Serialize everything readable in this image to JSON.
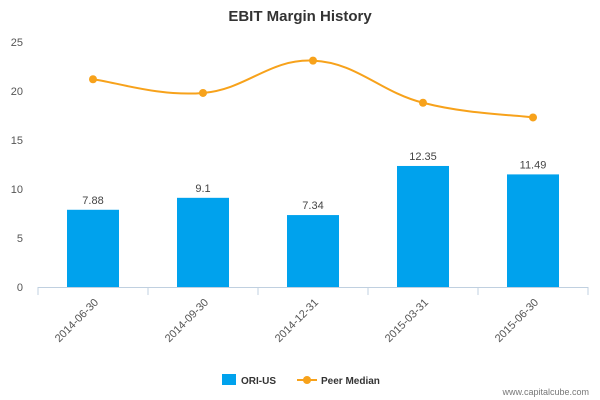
{
  "chart_data": {
    "type": "bar",
    "title": "EBIT Margin History",
    "xlabel": "",
    "ylabel": "",
    "categories": [
      "2014-06-30",
      "2014-09-30",
      "2014-12-31",
      "2015-03-31",
      "2015-06-30"
    ],
    "ylim": [
      0,
      25
    ],
    "yticks": [
      0,
      5,
      10,
      15,
      20,
      25
    ],
    "grid": false,
    "legend_position": "bottom-center",
    "series": [
      {
        "name": "ORI-US",
        "kind": "bar",
        "color": "#00A2ED",
        "values": [
          7.88,
          9.1,
          7.34,
          12.35,
          11.49
        ],
        "data_labels": [
          "7.88",
          "9.1",
          "7.34",
          "12.35",
          "11.49"
        ]
      },
      {
        "name": "Peer Median",
        "kind": "line",
        "color": "#F7A21B",
        "values": [
          21.2,
          19.8,
          23.1,
          18.8,
          17.3
        ]
      }
    ]
  },
  "credit": "www.capitalcube.com"
}
